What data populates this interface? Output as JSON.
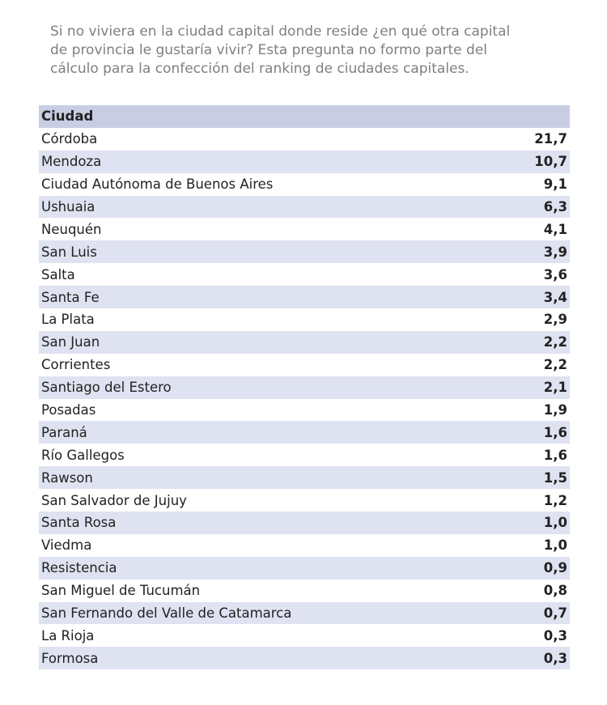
{
  "intro": [
    "Si no viviera en la ciudad capital donde reside ¿en qué otra capital",
    "de provincia le gustaría vivir? Esta pregunta no formo parte del",
    "cálculo para la confección del ranking de ciudades capitales."
  ],
  "table": {
    "header": "Ciudad",
    "rows": [
      [
        "Córdoba",
        "21,7"
      ],
      [
        "Mendoza",
        "10,7"
      ],
      [
        "Ciudad Autónoma de Buenos Aires",
        "9,1"
      ],
      [
        "Ushuaia",
        "6,3"
      ],
      [
        "Neuquén",
        "4,1"
      ],
      [
        "San Luis",
        "3,9"
      ],
      [
        "Salta",
        "3,6"
      ],
      [
        "Santa Fe",
        "3,4"
      ],
      [
        "La Plata",
        "2,9"
      ],
      [
        "San Juan",
        "2,2"
      ],
      [
        "Corrientes",
        "2,2"
      ],
      [
        "Santiago del Estero",
        "2,1"
      ],
      [
        "Posadas",
        "1,9"
      ],
      [
        "Paraná",
        "1,6"
      ],
      [
        "Río Gallegos",
        "1,6"
      ],
      [
        "Rawson",
        "1,5"
      ],
      [
        "San Salvador de Jujuy",
        "1,2"
      ],
      [
        "Santa Rosa",
        "1,0"
      ],
      [
        "Viedma",
        "1,0"
      ],
      [
        "Resistencia",
        "0,9"
      ],
      [
        "San Miguel de Tucumán",
        "0,8"
      ],
      [
        "San Fernando del Valle de Catamarca",
        "0,7"
      ],
      [
        "La Rioja",
        "0,3"
      ],
      [
        "Formosa",
        "0,3"
      ]
    ]
  }
}
